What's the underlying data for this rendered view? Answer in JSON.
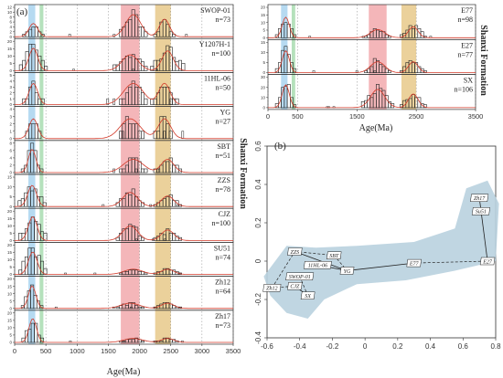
{
  "colors": {
    "band_blue": "#a9d4ee",
    "band_green": "#a8dcb0",
    "band_red": "#f2a9ad",
    "band_orange": "#e8c98a",
    "kde_line": "#d23a2a",
    "bar_edge": "#222222",
    "mds_fill": "#b9d2df"
  },
  "chart_data": [
    {
      "type": "bar",
      "panel": "(a)",
      "side_label": "Shanxi Formation",
      "xlabel": "Age(Ma)",
      "xlim": [
        0,
        3500
      ],
      "xticks": [
        0,
        500,
        1000,
        1500,
        2000,
        2500,
        3000,
        3500
      ],
      "bands": [
        {
          "color_key": "band_blue",
          "range": [
            220,
            330
          ]
        },
        {
          "color_key": "band_green",
          "range": [
            400,
            460
          ]
        },
        {
          "color_key": "band_red",
          "range": [
            1700,
            2000
          ]
        },
        {
          "color_key": "band_orange",
          "range": [
            2250,
            2500
          ]
        }
      ],
      "series": [
        {
          "name": "SWOP-01",
          "n": "n=73",
          "ymax": 12,
          "yticks": [
            "0",
            "2",
            "4",
            "6",
            "8",
            "10",
            "12"
          ],
          "groups": [
            [
              300,
              6,
              2,
              70
            ],
            [
              1900,
              10,
              3,
              120
            ],
            [
              2400,
              8,
              2,
              80
            ]
          ]
        },
        {
          "name": "Y1207H-1",
          "n": "n=100",
          "ymax": 20,
          "yticks": [
            "0",
            "5",
            "10",
            "15",
            "20"
          ],
          "groups": [
            [
              300,
              17,
              3,
              70
            ],
            [
              1850,
              12,
              4,
              130
            ],
            [
              2450,
              15,
              4,
              90
            ]
          ]
        },
        {
          "name": "11HL-06",
          "n": "n=50",
          "ymax": 5,
          "yticks": [
            "0",
            "1",
            "2",
            "3",
            "4",
            "5"
          ],
          "groups": [
            [
              300,
              4,
              2,
              70
            ],
            [
              1900,
              4,
              3,
              160
            ],
            [
              2400,
              4,
              3,
              90
            ]
          ]
        },
        {
          "name": "YG",
          "n": "n=27",
          "ymax": 4,
          "yticks": [
            "0",
            "1",
            "2",
            "3",
            "4"
          ],
          "groups": [
            [
              300,
              3,
              2,
              70
            ],
            [
              1850,
              3,
              3,
              160
            ],
            [
              2400,
              3,
              2,
              100
            ]
          ]
        },
        {
          "name": "SBT",
          "n": "n=51",
          "ymax": 8,
          "yticks": [
            "0",
            "2",
            "4",
            "6",
            "8"
          ],
          "groups": [
            [
              280,
              7,
              2,
              60
            ],
            [
              1900,
              4,
              3,
              160
            ],
            [
              2450,
              4,
              3,
              100
            ]
          ]
        },
        {
          "name": "ZZS",
          "n": "n=78",
          "ymax": 15,
          "yticks": [
            "0",
            "5",
            "10",
            "15"
          ],
          "groups": [
            [
              280,
              12,
              3,
              70
            ],
            [
              1850,
              8,
              3,
              120
            ],
            [
              2450,
              6,
              3,
              100
            ]
          ]
        },
        {
          "name": "CJZ",
          "n": "n=100",
          "ymax": 20,
          "yticks": [
            "0",
            "5",
            "10",
            "15",
            "20"
          ],
          "groups": [
            [
              290,
              18,
              3,
              70
            ],
            [
              1850,
              11,
              3,
              120
            ],
            [
              2450,
              8,
              3,
              100
            ]
          ]
        },
        {
          "name": "SU51",
          "n": "n=74",
          "ymax": 20,
          "yticks": [
            "0",
            "5",
            "10",
            "15",
            "20"
          ],
          "groups": [
            [
              290,
              17,
              3,
              70
            ],
            [
              1900,
              4,
              3,
              150
            ],
            [
              2450,
              4,
              3,
              100
            ]
          ]
        },
        {
          "name": "Zh12",
          "n": "n=64",
          "ymax": 20,
          "yticks": [
            "0",
            "5",
            "10",
            "15",
            "20"
          ],
          "groups": [
            [
              280,
              17,
              2,
              60
            ],
            [
              1850,
              4,
              3,
              150
            ],
            [
              2450,
              4,
              3,
              100
            ]
          ]
        },
        {
          "name": "Zh17",
          "n": "n=73",
          "ymax": 20,
          "yticks": [
            "0",
            "5",
            "10",
            "15",
            "20"
          ],
          "groups": [
            [
              290,
              18,
              2,
              60
            ],
            [
              1900,
              3,
              3,
              150
            ],
            [
              2450,
              3,
              3,
              100
            ]
          ]
        }
      ]
    },
    {
      "type": "bar",
      "panel": "",
      "side_label": "Shanxi Formation",
      "xlabel": "Age(Ma)",
      "xlim": [
        0,
        3500
      ],
      "xticks": [
        0,
        500,
        1500,
        2500,
        3500
      ],
      "bands": [
        {
          "color_key": "band_blue",
          "range": [
            220,
            330
          ]
        },
        {
          "color_key": "band_green",
          "range": [
            400,
            460
          ]
        },
        {
          "color_key": "band_red",
          "range": [
            1700,
            2000
          ]
        },
        {
          "color_key": "band_orange",
          "range": [
            2250,
            2500
          ]
        }
      ],
      "series": [
        {
          "name": "E77",
          "n": "n=98",
          "ymax": 20,
          "yticks": [
            "0",
            "5",
            "10",
            "15",
            "20"
          ],
          "groups": [
            [
              300,
              15,
              2,
              60
            ],
            [
              1850,
              6,
              3,
              120
            ],
            [
              2450,
              8,
              3,
              80
            ]
          ]
        },
        {
          "name": "E27",
          "n": "n=77",
          "ymax": 15,
          "yticks": [
            "0",
            "5",
            "10",
            "15"
          ],
          "groups": [
            [
              300,
              12,
              2,
              60
            ],
            [
              1850,
              6,
              3,
              120
            ],
            [
              2450,
              6,
              3,
              80
            ]
          ]
        },
        {
          "name": "SX",
          "n": "n=106",
          "ymax": 30,
          "yticks": [
            "0",
            "10",
            "20",
            "30"
          ],
          "groups": [
            [
              300,
              25,
              2,
              60
            ],
            [
              1850,
              20,
              4,
              120
            ],
            [
              2450,
              15,
              3,
              80
            ]
          ]
        }
      ]
    },
    {
      "type": "scatter",
      "panel": "(b)",
      "xlim": [
        -0.6,
        0.8
      ],
      "ylim": [
        -0.4,
        0.6
      ],
      "xticks": [
        "-0.6",
        "-0.4",
        "-0.2",
        "0",
        "0.2",
        "0.4",
        "0.6",
        "0.8"
      ],
      "yticks": [
        "-0.4",
        "-0.2",
        "0",
        "0.2",
        "0.4",
        "0.6"
      ],
      "points": [
        {
          "label": "ZZS",
          "x": -0.43,
          "y": 0.05
        },
        {
          "label": "SBT",
          "x": -0.19,
          "y": 0.03
        },
        {
          "label": "11HL-06",
          "x": -0.29,
          "y": -0.02
        },
        {
          "label": "YG",
          "x": -0.11,
          "y": -0.05
        },
        {
          "label": "SWOP-01",
          "x": -0.4,
          "y": -0.08
        },
        {
          "label": "CJZ",
          "x": -0.43,
          "y": -0.13
        },
        {
          "label": "Zh12",
          "x": -0.57,
          "y": -0.14
        },
        {
          "label": "SX",
          "x": -0.35,
          "y": -0.18
        },
        {
          "label": "E77",
          "x": 0.3,
          "y": -0.01
        },
        {
          "label": "E27",
          "x": 0.75,
          "y": 0.0
        },
        {
          "label": "Zh17",
          "x": 0.7,
          "y": 0.33
        },
        {
          "label": "Su51",
          "x": 0.71,
          "y": 0.26
        }
      ],
      "solid_links": [
        [
          "ZZS",
          "YG"
        ],
        [
          "11HL-06",
          "YG"
        ],
        [
          "CJZ",
          "SX"
        ],
        [
          "YG",
          "E77"
        ],
        [
          "Zh17",
          "E27"
        ]
      ],
      "dashed_links": [
        [
          "ZZS",
          "SBT"
        ],
        [
          "SBT",
          "YG"
        ],
        [
          "Zh12",
          "CJZ"
        ],
        [
          "Zh12",
          "ZZS"
        ],
        [
          "SWOP-01",
          "SX"
        ],
        [
          "E77",
          "E27"
        ]
      ]
    }
  ]
}
